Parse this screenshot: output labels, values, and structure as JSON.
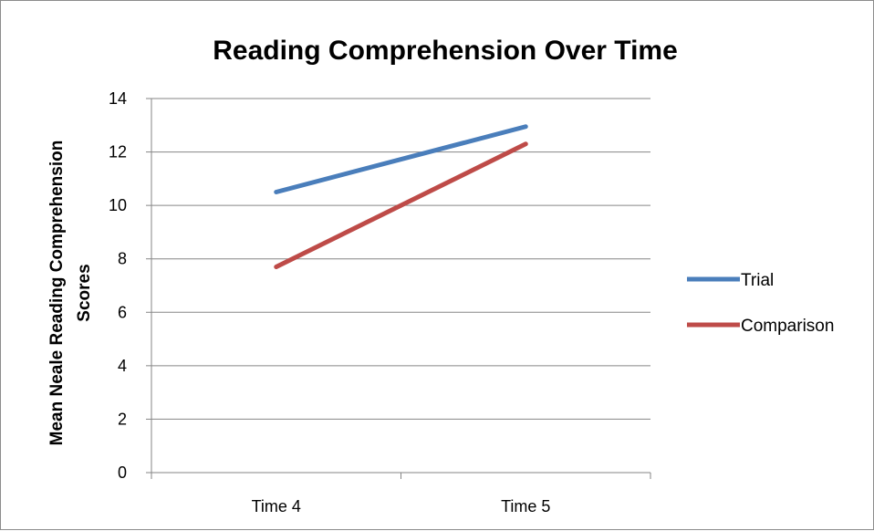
{
  "chart_data": {
    "type": "line",
    "title": "Reading Comprehension Over Time",
    "ylabel_line1": "Mean Neale Reading Comprehension",
    "ylabel_line2": "Scores",
    "xlabel": "",
    "categories": [
      "Time 4",
      "Time 5"
    ],
    "ylim": [
      0,
      14
    ],
    "yticks": [
      0,
      2,
      4,
      6,
      8,
      10,
      12,
      14
    ],
    "grid": true,
    "legend_position": "right",
    "series": [
      {
        "name": "Trial",
        "values": [
          10.5,
          12.95
        ],
        "color": "#4a7ebb"
      },
      {
        "name": "Comparison",
        "values": [
          7.7,
          12.3
        ],
        "color": "#be4b48"
      }
    ]
  }
}
